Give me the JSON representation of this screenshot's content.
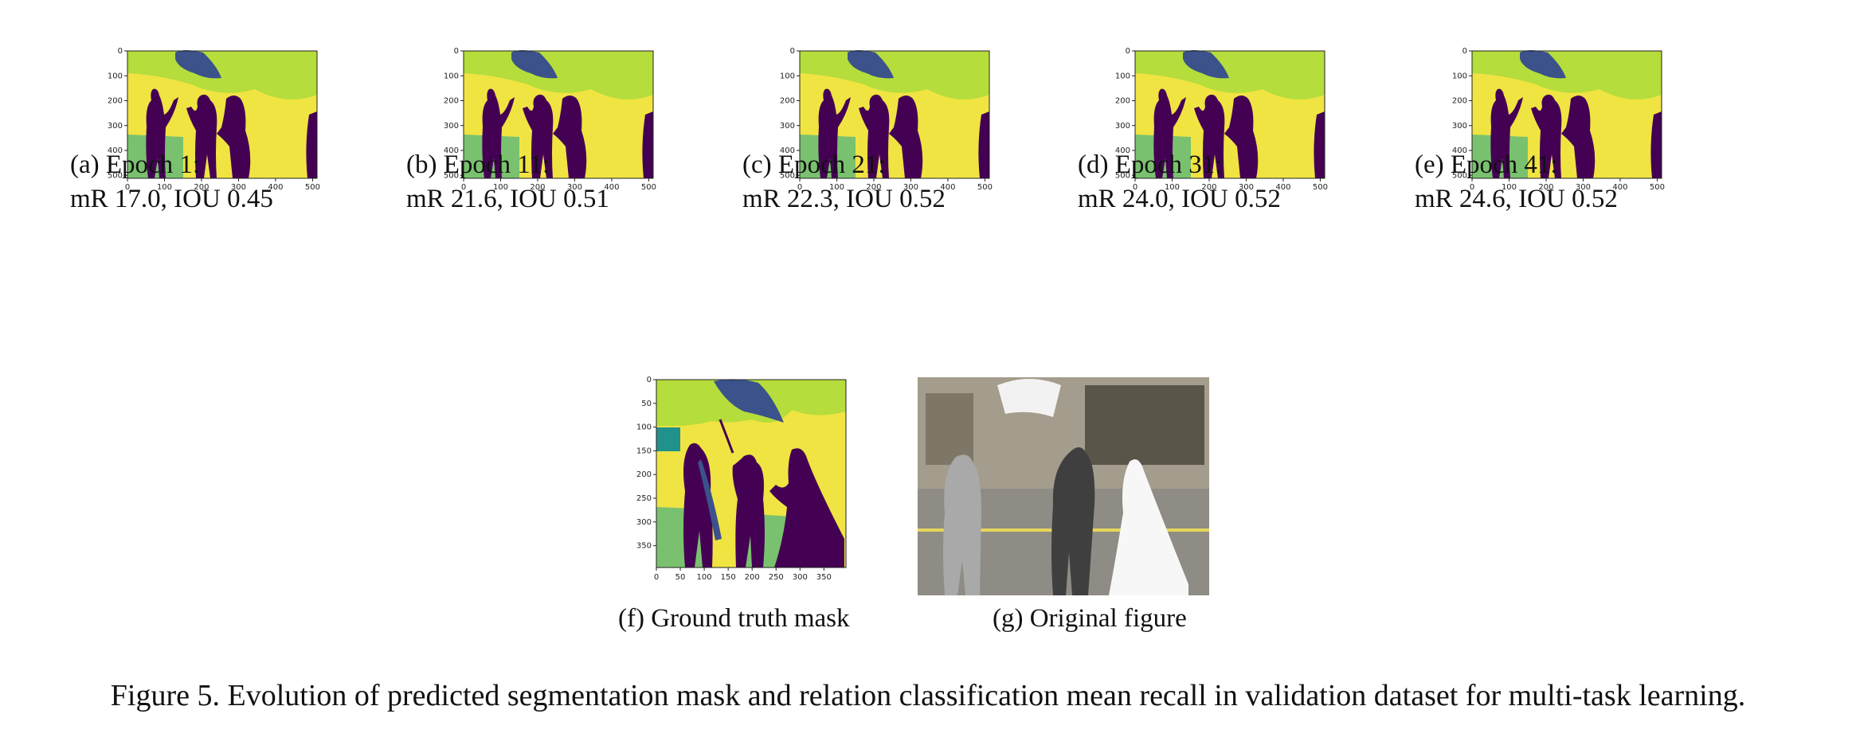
{
  "colors": {
    "dark_purple": "#440154",
    "indigo": "#3b528b",
    "teal": "#21918c",
    "green": "#7ac16f",
    "lime": "#b5dd3b",
    "yellow": "#f0e442"
  },
  "epoch_panels": [
    {
      "label": "(a) Epoch 1:",
      "metrics": "mR 17.0, IOU 0.45"
    },
    {
      "label": "(b) Epoch 11:",
      "metrics": "mR 21.6, IOU 0.51"
    },
    {
      "label": "(c) Epoch 21:",
      "metrics": "mR 22.3, IOU 0.52"
    },
    {
      "label": "(d) Epoch 31:",
      "metrics": "mR 24.0, IOU 0.52"
    },
    {
      "label": "(e) Epoch 41:",
      "metrics": "mR 24.6, IOU 0.52"
    }
  ],
  "epoch_axis": {
    "x_ticks": [
      "0",
      "100",
      "200",
      "300",
      "400",
      "500"
    ],
    "y_ticks": [
      "0",
      "100",
      "200",
      "300",
      "400",
      "500"
    ]
  },
  "ground_truth": {
    "label": "(f) Ground truth mask",
    "x_ticks": [
      "0",
      "50",
      "100",
      "150",
      "200",
      "250",
      "300",
      "350"
    ],
    "y_ticks": [
      "0",
      "50",
      "100",
      "150",
      "200",
      "250",
      "300",
      "350"
    ]
  },
  "original": {
    "label": "(g) Original figure"
  },
  "figure_caption": "Figure 5. Evolution of predicted segmentation mask and relation classification mean recall in validation dataset for multi-task learning."
}
